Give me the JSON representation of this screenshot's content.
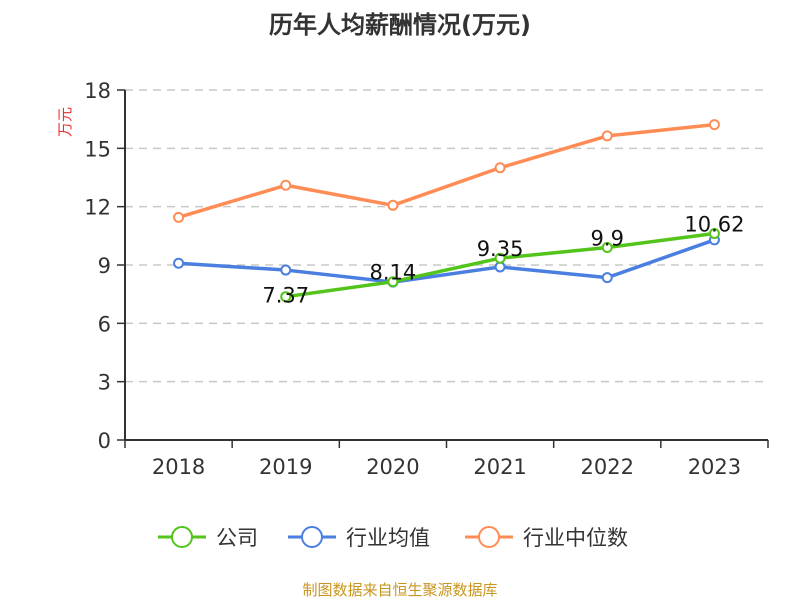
{
  "chart_data": {
    "type": "line",
    "title": "历年人均薪酬情况(万元)",
    "ylabel": "万元",
    "xlabel": "",
    "categories": [
      "2018",
      "2019",
      "2020",
      "2021",
      "2022",
      "2023"
    ],
    "ylim": [
      0,
      18
    ],
    "yticks": [
      0,
      3,
      6,
      9,
      12,
      15,
      18
    ],
    "grid": true,
    "legend_placement": "bottom",
    "series": [
      {
        "name": "公司",
        "color": "#52c41a",
        "values": [
          null,
          7.37,
          8.14,
          9.35,
          9.9,
          10.62
        ],
        "labels": [
          "",
          "7.37",
          "8.14",
          "9.35",
          "9.9",
          "10.62"
        ]
      },
      {
        "name": "行业均值",
        "color": "#4a7ee0",
        "values": [
          9.09,
          8.74,
          8.12,
          8.9,
          8.35,
          10.29
        ]
      },
      {
        "name": "行业中位数",
        "color": "#ff8c55",
        "values": [
          11.45,
          13.1,
          12.07,
          14.0,
          15.64,
          16.22
        ]
      }
    ]
  },
  "footer": {
    "source": "制图数据来自恒生聚源数据库",
    "source_color": "#c8961e"
  }
}
